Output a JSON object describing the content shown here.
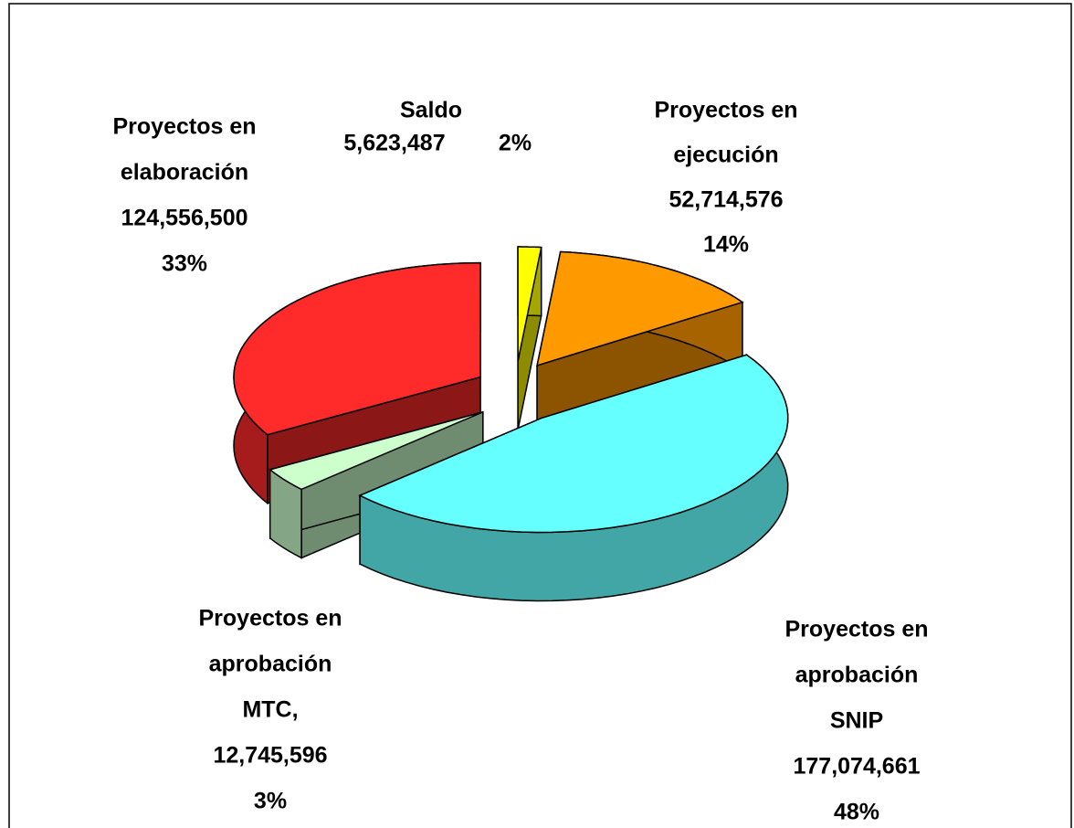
{
  "chart_data": {
    "type": "pie3d",
    "categories": [
      [
        "Saldo"
      ],
      [
        "Proyectos en",
        "ejecución"
      ],
      [
        "Proyectos en",
        "aprobación",
        "SNIP"
      ],
      [
        "Proyectos en",
        "aprobación",
        "MTC,"
      ],
      [
        "Proyectos en",
        "elaboración"
      ]
    ],
    "values": [
      5623487,
      52714576,
      177074661,
      12745596,
      124556500
    ],
    "value_labels": [
      "5,623,487",
      "52,714,576",
      "177,074,661",
      "12,745,596",
      "124,556,500"
    ],
    "percent_labels": [
      "2%",
      "14%",
      "48%",
      "3%",
      "33%"
    ],
    "colors": [
      "#ffff00",
      "#ff9900",
      "#66ffff",
      "#ccffcc",
      "#ff2a2a"
    ]
  }
}
